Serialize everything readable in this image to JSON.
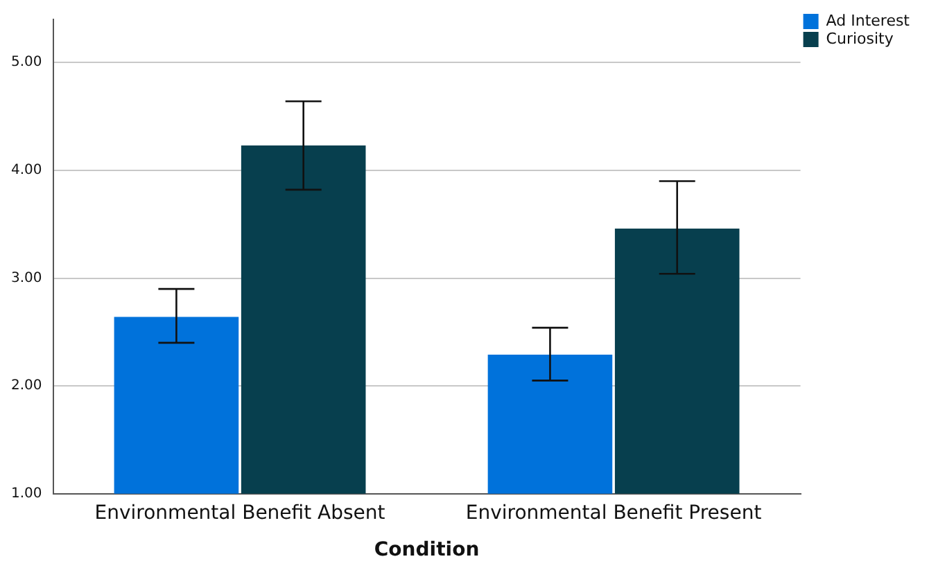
{
  "chart_data": {
    "type": "bar",
    "xlabel": "Condition",
    "categories": [
      "Environmental Benefit Absent",
      "Environmental Benefit Present"
    ],
    "series": [
      {
        "name": "Ad Interest",
        "color": "#0072db",
        "values": [
          2.64,
          2.29
        ],
        "errors": [
          [
            2.4,
            2.9
          ],
          [
            2.05,
            2.54
          ]
        ]
      },
      {
        "name": "Curiosity",
        "color": "#073f4e",
        "values": [
          4.23,
          3.46
        ],
        "errors": [
          [
            3.82,
            4.64
          ],
          [
            3.04,
            3.9
          ]
        ]
      }
    ],
    "ylim": [
      1,
      5.4
    ],
    "yticks": [
      {
        "value": 1,
        "label": "1.00"
      },
      {
        "value": 2,
        "label": "2.00"
      },
      {
        "value": 3,
        "label": "3.00"
      },
      {
        "value": 4,
        "label": "4.00"
      },
      {
        "value": 5,
        "label": "5.00"
      }
    ],
    "grid": "y",
    "legend": "top right"
  }
}
